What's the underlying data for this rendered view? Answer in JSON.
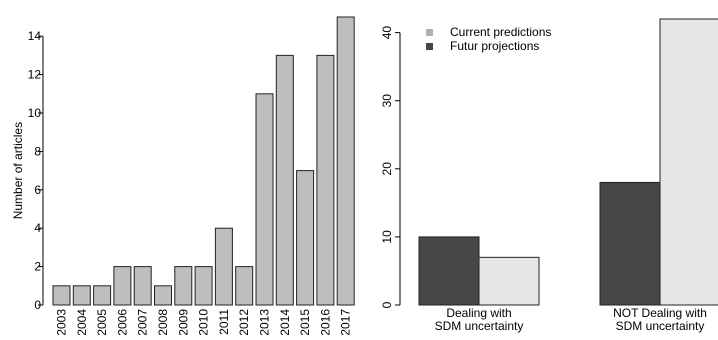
{
  "chart_data": [
    {
      "type": "bar",
      "title": "",
      "xlabel": "",
      "ylabel": "Number of articles",
      "ylim": [
        0,
        15
      ],
      "yticks": [
        0,
        2,
        4,
        6,
        8,
        10,
        12,
        14
      ],
      "categories": [
        "2003",
        "2004",
        "2005",
        "2006",
        "2007",
        "2008",
        "2009",
        "2010",
        "2011",
        "2012",
        "2013",
        "2014",
        "2015",
        "2016",
        "2017"
      ],
      "values": [
        1,
        1,
        1,
        2,
        2,
        1,
        2,
        2,
        4,
        2,
        11,
        13,
        7,
        13,
        15
      ],
      "bar_color": "#bebebe",
      "grid": false
    },
    {
      "type": "bar",
      "title": "",
      "xlabel": "",
      "ylabel": "",
      "ylim": [
        0,
        42
      ],
      "yticks": [
        0,
        10,
        20,
        30,
        40
      ],
      "categories": [
        "Dealing with\nSDM uncertainty",
        "NOT Dealing with\nSDM uncertainty"
      ],
      "series": [
        {
          "name": "Futur projections",
          "values": [
            10,
            18
          ],
          "color": "#474747"
        },
        {
          "name": "Current predictions",
          "values": [
            7,
            42
          ],
          "color": "#e6e6e6"
        }
      ],
      "legend": {
        "position": "top-left",
        "entries": [
          {
            "label": "Current predictions",
            "color": "#b0b0b0"
          },
          {
            "label": "Futur projections",
            "color": "#474747"
          }
        ]
      },
      "grid": false
    }
  ]
}
